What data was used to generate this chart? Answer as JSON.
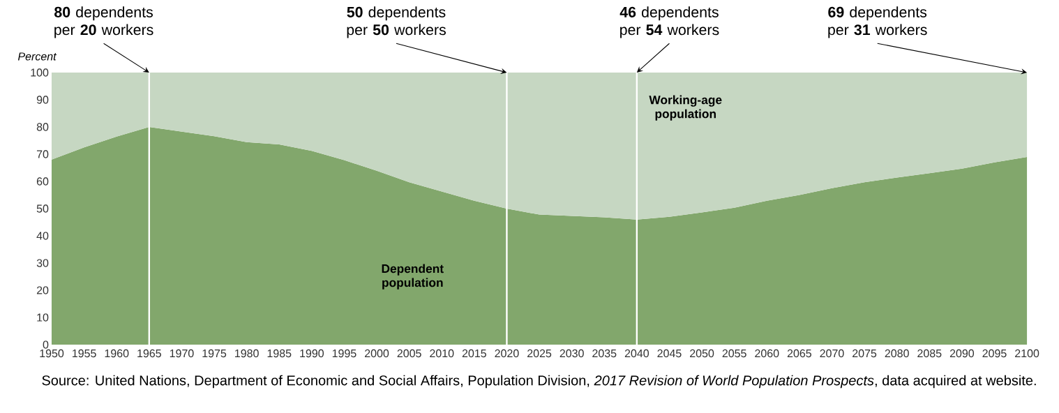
{
  "chart_data": {
    "type": "area",
    "stacked": true,
    "ylabel": "Percent",
    "xlim": [
      1950,
      2100
    ],
    "ylim": [
      0,
      100
    ],
    "xticks": [
      1950,
      1955,
      1960,
      1965,
      1970,
      1975,
      1980,
      1985,
      1990,
      1995,
      2000,
      2005,
      2010,
      2015,
      2020,
      2025,
      2030,
      2035,
      2040,
      2045,
      2050,
      2055,
      2060,
      2065,
      2070,
      2075,
      2080,
      2085,
      2090,
      2095,
      2100
    ],
    "yticks": [
      0,
      10,
      20,
      30,
      40,
      50,
      60,
      70,
      80,
      90,
      100
    ],
    "x": [
      1950,
      1955,
      1960,
      1965,
      1970,
      1975,
      1980,
      1985,
      1990,
      1995,
      2000,
      2005,
      2010,
      2015,
      2020,
      2025,
      2030,
      2035,
      2040,
      2045,
      2050,
      2055,
      2060,
      2065,
      2070,
      2075,
      2080,
      2085,
      2090,
      2095,
      2100
    ],
    "series": [
      {
        "name": "Dependent population",
        "color": "#82a76c",
        "values": [
          68,
          72.5,
          76.5,
          80,
          78.3,
          76.6,
          74.4,
          73.6,
          71.2,
          67.8,
          63.9,
          59.7,
          56.3,
          52.9,
          50,
          47.8,
          47.3,
          46.8,
          46,
          47,
          48.6,
          50.3,
          52.9,
          55,
          57.5,
          59.7,
          61.4,
          63,
          64.7,
          67,
          69
        ]
      },
      {
        "name": "Working-age population",
        "color": "#c6d7c2",
        "values": [
          32,
          27.5,
          23.5,
          20,
          21.7,
          23.4,
          25.6,
          26.4,
          28.8,
          32.2,
          36.1,
          40.3,
          43.7,
          47.1,
          50,
          52.2,
          52.7,
          53.2,
          54,
          53,
          51.4,
          49.7,
          47.1,
          45,
          42.5,
          40.3,
          38.6,
          37,
          35.3,
          33,
          31
        ]
      }
    ],
    "ref_lines": [
      {
        "axis": "x",
        "value": 1965,
        "color": "#ffffff"
      },
      {
        "axis": "x",
        "value": 2020,
        "color": "#ffffff"
      },
      {
        "axis": "x",
        "value": 2040,
        "color": "#ffffff"
      }
    ],
    "annotations": [
      {
        "text": "**80** dependents per **20** workers",
        "x": 1965,
        "y": 100
      },
      {
        "text": "**50** dependents per **50** workers",
        "x": 2020,
        "y": 100
      },
      {
        "text": "**46** dependents per **54** workers",
        "x": 2040,
        "y": 100
      },
      {
        "text": "**69** dependents per **31** workers",
        "x": 2100,
        "y": 100
      },
      "Source: United Nations, Department of Economic and Social Affairs, Population Division, *2017 Revision of World Population Prospects*, data acquired at website."
    ]
  }
}
